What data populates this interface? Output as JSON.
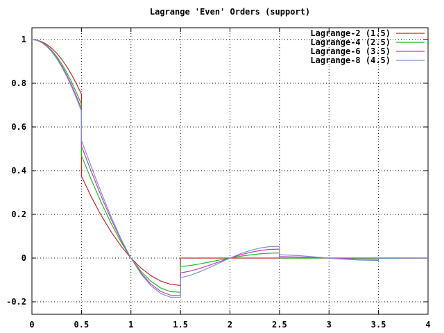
{
  "window": {
    "background": "#ffffff",
    "foreground": "#000000"
  },
  "chart_data": {
    "type": "line",
    "title": "Lagrange 'Even' Orders (support)",
    "xlabel": "",
    "ylabel": "",
    "xlim": [
      0,
      4
    ],
    "ylim": [
      -0.2,
      1
    ],
    "grid": true,
    "grid_style": "dotted",
    "legend_position": "top-right",
    "xticks": {
      "values": [
        0,
        0.5,
        1,
        1.5,
        2,
        2.5,
        3,
        3.5,
        4
      ],
      "labels": [
        "0",
        "0.5",
        "1",
        "1.5",
        "2",
        "2.5",
        "3",
        "3.5",
        "4"
      ]
    },
    "yticks": {
      "values": [
        1,
        0.8,
        0.6,
        0.4,
        0.2,
        0,
        -0.2
      ],
      "labels": [
        "1",
        "0.8",
        "0.6",
        "0.4",
        "0.2",
        "0",
        "-0.2"
      ]
    },
    "series": [
      {
        "name": "Lagrange-2 (1.5)",
        "support": 1.5,
        "color": "#c22727",
        "points": [
          [
            0,
            1
          ],
          [
            0.05,
            0.9975
          ],
          [
            0.1,
            0.99
          ],
          [
            0.15,
            0.9775
          ],
          [
            0.2,
            0.96
          ],
          [
            0.25,
            0.9375
          ],
          [
            0.3,
            0.91
          ],
          [
            0.35,
            0.8775
          ],
          [
            0.4,
            0.84
          ],
          [
            0.45,
            0.7975
          ],
          [
            0.5,
            0.75
          ],
          [
            0.5,
            0.375
          ],
          [
            0.6,
            0.28
          ],
          [
            0.7,
            0.195
          ],
          [
            0.8,
            0.12
          ],
          [
            0.9,
            0.055
          ],
          [
            1,
            0
          ],
          [
            1.1,
            -0.045
          ],
          [
            1.2,
            -0.08
          ],
          [
            1.3,
            -0.105
          ],
          [
            1.4,
            -0.12
          ],
          [
            1.5,
            -0.125
          ],
          [
            1.5,
            0
          ],
          [
            4,
            0
          ]
        ]
      },
      {
        "name": "Lagrange-4 (2.5)",
        "support": 2.5,
        "color": "#1fbb1f",
        "points": [
          [
            0,
            1
          ],
          [
            0.05,
            0.9969
          ],
          [
            0.1,
            0.9875
          ],
          [
            0.15,
            0.972
          ],
          [
            0.2,
            0.9504
          ],
          [
            0.25,
            0.9229
          ],
          [
            0.3,
            0.8895
          ],
          [
            0.35,
            0.8506
          ],
          [
            0.4,
            0.8064
          ],
          [
            0.45,
            0.7571
          ],
          [
            0.5,
            0.7031
          ],
          [
            0.5,
            0.4688
          ],
          [
            0.6,
            0.3584
          ],
          [
            0.7,
            0.2542
          ],
          [
            0.8,
            0.1584
          ],
          [
            0.9,
            0.0732
          ],
          [
            1,
            0
          ],
          [
            1.1,
            -0.0599
          ],
          [
            1.2,
            -0.1056
          ],
          [
            1.3,
            -0.1369
          ],
          [
            1.4,
            -0.1536
          ],
          [
            1.5,
            -0.1563
          ],
          [
            1.5,
            -0.0391
          ],
          [
            1.6,
            -0.0336
          ],
          [
            1.7,
            -0.0262
          ],
          [
            1.8,
            -0.0176
          ],
          [
            1.9,
            -0.0087
          ],
          [
            2,
            0
          ],
          [
            2.1,
            0.0078
          ],
          [
            2.2,
            0.0144
          ],
          [
            2.3,
            0.0193
          ],
          [
            2.4,
            0.0224
          ],
          [
            2.5,
            0.0234
          ],
          [
            2.5,
            0
          ],
          [
            4,
            0
          ]
        ]
      },
      {
        "name": "Lagrange-6 (3.5)",
        "support": 3.5,
        "color": "#bd3dbd",
        "points": [
          [
            0,
            1
          ],
          [
            0.05,
            0.9966
          ],
          [
            0.1,
            0.9864
          ],
          [
            0.15,
            0.9696
          ],
          [
            0.2,
            0.9462
          ],
          [
            0.25,
            0.9164
          ],
          [
            0.3,
            0.8806
          ],
          [
            0.35,
            0.8391
          ],
          [
            0.4,
            0.7921
          ],
          [
            0.45,
            0.7401
          ],
          [
            0.5,
            0.6836
          ],
          [
            0.5,
            0.5127
          ],
          [
            0.6,
            0.396
          ],
          [
            0.7,
            0.2831
          ],
          [
            0.8,
            0.1774
          ],
          [
            0.9,
            0.0822
          ],
          [
            1,
            0
          ],
          [
            1.1,
            -0.0673
          ],
          [
            1.2,
            -0.1183
          ],
          [
            1.3,
            -0.1524
          ],
          [
            1.4,
            -0.1697
          ],
          [
            1.5,
            -0.1709
          ],
          [
            1.5,
            -0.0684
          ],
          [
            1.6,
            -0.0594
          ],
          [
            1.7,
            -0.0466
          ],
          [
            1.8,
            -0.0315
          ],
          [
            1.9,
            -0.0156
          ],
          [
            2,
            0
          ],
          [
            2.1,
            0.0141
          ],
          [
            2.2,
            0.0258
          ],
          [
            2.3,
            0.0345
          ],
          [
            2.4,
            0.0396
          ],
          [
            2.5,
            0.041
          ],
          [
            2.5,
            0.0068
          ],
          [
            2.7,
            0.0049
          ],
          [
            2.9,
            0.0017
          ],
          [
            3,
            0
          ],
          [
            3.1,
            -0.0016
          ],
          [
            3.3,
            -0.004
          ],
          [
            3.5,
            -0.0049
          ],
          [
            3.5,
            0
          ],
          [
            4,
            0
          ]
        ]
      },
      {
        "name": "Lagrange-8 (4.5)",
        "support": 4.5,
        "color": "#7f90c7",
        "points": [
          [
            0,
            1
          ],
          [
            0.05,
            0.9964
          ],
          [
            0.1,
            0.9858
          ],
          [
            0.15,
            0.9682
          ],
          [
            0.2,
            0.9438
          ],
          [
            0.25,
            0.9129
          ],
          [
            0.3,
            0.8757
          ],
          [
            0.35,
            0.8326
          ],
          [
            0.4,
            0.7841
          ],
          [
            0.45,
            0.7307
          ],
          [
            0.5,
            0.6729
          ],
          [
            0.5,
            0.5383
          ],
          [
            0.6,
            0.4182
          ],
          [
            0.7,
            0.3002
          ],
          [
            0.8,
            0.1888
          ],
          [
            0.9,
            0.0876
          ],
          [
            1,
            0
          ],
          [
            1.1,
            -0.0717
          ],
          [
            1.2,
            -0.1258
          ],
          [
            1.3,
            -0.1617
          ],
          [
            1.4,
            -0.1792
          ],
          [
            1.5,
            -0.1794
          ],
          [
            1.5,
            -0.0897
          ],
          [
            1.6,
            -0.0784
          ],
          [
            1.7,
            -0.0618
          ],
          [
            1.8,
            -0.0419
          ],
          [
            1.9,
            -0.0208
          ],
          [
            2,
            0
          ],
          [
            2.1,
            0.0188
          ],
          [
            2.2,
            0.0343
          ],
          [
            2.3,
            0.0457
          ],
          [
            2.4,
            0.0523
          ],
          [
            2.5,
            0.0538
          ],
          [
            2.5,
            0.0154
          ],
          [
            2.7,
            0.0111
          ],
          [
            2.9,
            0.0039
          ],
          [
            3,
            0
          ],
          [
            3.1,
            -0.0036
          ],
          [
            3.3,
            -0.0091
          ],
          [
            3.5,
            -0.011
          ],
          [
            3.5,
            -0.0014
          ],
          [
            3.7,
            -0.001
          ],
          [
            4,
            0
          ]
        ]
      }
    ]
  }
}
